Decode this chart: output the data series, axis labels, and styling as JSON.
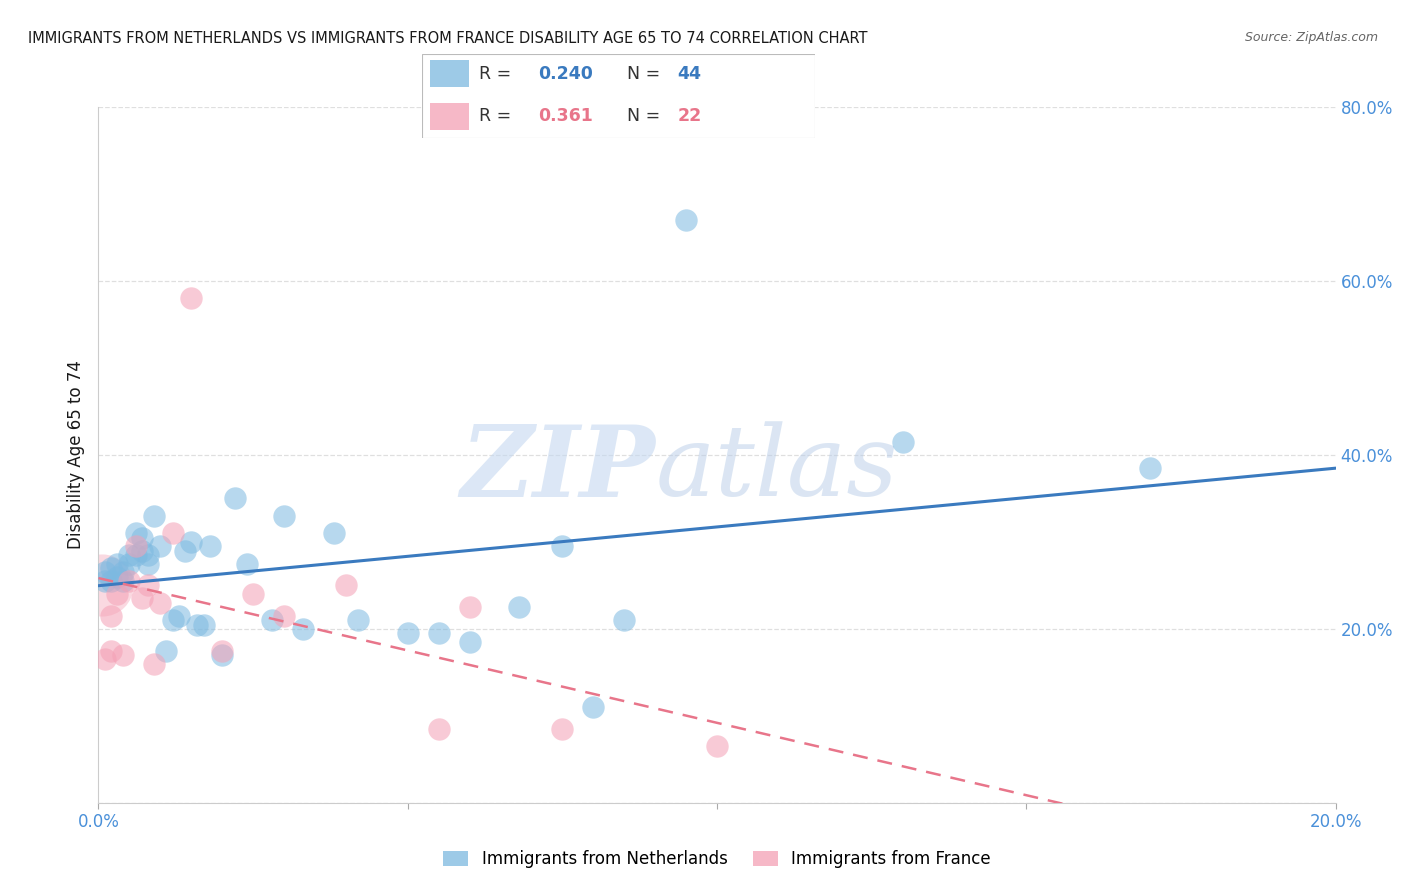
{
  "title": "IMMIGRANTS FROM NETHERLANDS VS IMMIGRANTS FROM FRANCE DISABILITY AGE 65 TO 74 CORRELATION CHART",
  "source": "Source: ZipAtlas.com",
  "ylabel": "Disability Age 65 to 74",
  "watermark_zip": "ZIP",
  "watermark_atlas": "atlas",
  "xlim": [
    0.0,
    0.2
  ],
  "ylim": [
    0.0,
    0.8
  ],
  "xticks": [
    0.0,
    0.05,
    0.1,
    0.15,
    0.2
  ],
  "yticks": [
    0.0,
    0.2,
    0.4,
    0.6,
    0.8
  ],
  "xtick_labels": [
    "0.0%",
    "",
    "",
    "",
    "20.0%"
  ],
  "ytick_labels_right": [
    "",
    "20.0%",
    "40.0%",
    "60.0%",
    "80.0%"
  ],
  "netherlands_R": 0.24,
  "netherlands_N": 44,
  "france_R": 0.361,
  "france_N": 22,
  "netherlands_color": "#7db9e0",
  "france_color": "#f4a0b5",
  "netherlands_line_color": "#3a7abf",
  "france_line_color": "#e8758a",
  "legend_label_netherlands": "Immigrants from Netherlands",
  "legend_label_france": "Immigrants from France",
  "nl_x": [
    0.001,
    0.001,
    0.002,
    0.002,
    0.003,
    0.003,
    0.004,
    0.004,
    0.005,
    0.005,
    0.006,
    0.006,
    0.007,
    0.007,
    0.008,
    0.008,
    0.009,
    0.01,
    0.011,
    0.012,
    0.013,
    0.014,
    0.015,
    0.016,
    0.017,
    0.018,
    0.02,
    0.022,
    0.024,
    0.028,
    0.03,
    0.033,
    0.038,
    0.042,
    0.05,
    0.055,
    0.06,
    0.068,
    0.075,
    0.08,
    0.085,
    0.095,
    0.13,
    0.17
  ],
  "nl_y": [
    0.255,
    0.265,
    0.255,
    0.27,
    0.26,
    0.275,
    0.265,
    0.255,
    0.275,
    0.285,
    0.31,
    0.285,
    0.29,
    0.305,
    0.285,
    0.275,
    0.33,
    0.295,
    0.175,
    0.21,
    0.215,
    0.29,
    0.3,
    0.205,
    0.205,
    0.295,
    0.17,
    0.35,
    0.275,
    0.21,
    0.33,
    0.2,
    0.31,
    0.21,
    0.195,
    0.195,
    0.185,
    0.225,
    0.295,
    0.11,
    0.21,
    0.67,
    0.415,
    0.385
  ],
  "fr_x": [
    0.0005,
    0.001,
    0.002,
    0.002,
    0.003,
    0.004,
    0.005,
    0.006,
    0.007,
    0.008,
    0.009,
    0.01,
    0.012,
    0.015,
    0.02,
    0.025,
    0.03,
    0.04,
    0.055,
    0.06,
    0.075,
    0.1
  ],
  "fr_y": [
    0.25,
    0.165,
    0.175,
    0.215,
    0.24,
    0.17,
    0.255,
    0.295,
    0.235,
    0.25,
    0.16,
    0.23,
    0.31,
    0.58,
    0.175,
    0.24,
    0.215,
    0.25,
    0.085,
    0.225,
    0.085,
    0.065
  ],
  "fr_large_idx": 0,
  "background_color": "#ffffff",
  "grid_color": "#d8d8d8",
  "title_color": "#1a1a1a",
  "right_axis_color": "#4a90d9",
  "bottom_axis_color": "#4a90d9"
}
